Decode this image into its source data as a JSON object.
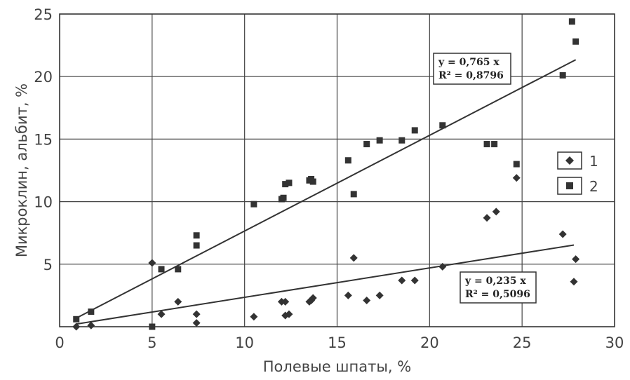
{
  "chart_data": {
    "type": "scatter",
    "title": "",
    "xlabel": "Полевые шпаты, %",
    "ylabel": "Микроклин, альбит, %",
    "xlim": [
      0,
      30
    ],
    "ylim": [
      0,
      25
    ],
    "x_ticks": [
      "0",
      "5",
      "10",
      "15",
      "20",
      "25",
      "30"
    ],
    "y_ticks": [
      "5",
      "10",
      "15",
      "20",
      "25"
    ],
    "grid": true,
    "legend_position": "right",
    "series": [
      {
        "name": "1",
        "marker": "diamond",
        "color": "#333333",
        "points": [
          [
            0.9,
            0.0
          ],
          [
            1.7,
            0.1
          ],
          [
            5.0,
            5.1
          ],
          [
            5.5,
            1.0
          ],
          [
            6.4,
            2.0
          ],
          [
            7.4,
            1.0
          ],
          [
            7.4,
            0.3
          ],
          [
            10.5,
            0.8
          ],
          [
            12.0,
            2.0
          ],
          [
            12.2,
            2.0
          ],
          [
            12.2,
            0.9
          ],
          [
            12.4,
            1.0
          ],
          [
            13.5,
            2.0
          ],
          [
            13.6,
            2.1
          ],
          [
            13.7,
            2.3
          ],
          [
            15.6,
            2.5
          ],
          [
            15.9,
            5.5
          ],
          [
            16.6,
            2.1
          ],
          [
            17.3,
            2.5
          ],
          [
            18.5,
            3.7
          ],
          [
            19.2,
            3.7
          ],
          [
            20.7,
            4.8
          ],
          [
            23.1,
            8.7
          ],
          [
            23.6,
            9.2
          ],
          [
            24.7,
            11.9
          ],
          [
            27.2,
            7.4
          ],
          [
            27.8,
            3.6
          ],
          [
            27.9,
            5.4
          ]
        ],
        "trendline": {
          "slope": 0.235,
          "x_range": [
            0.9,
            27.8
          ],
          "equation": "y = 0,235 x",
          "r2_label": "R² = 0,5096"
        }
      },
      {
        "name": "2",
        "marker": "square",
        "color": "#333333",
        "points": [
          [
            0.9,
            0.6
          ],
          [
            1.7,
            1.2
          ],
          [
            5.0,
            0.0
          ],
          [
            5.5,
            4.6
          ],
          [
            6.4,
            4.6
          ],
          [
            7.4,
            7.3
          ],
          [
            7.4,
            6.5
          ],
          [
            10.5,
            9.8
          ],
          [
            12.0,
            10.2
          ],
          [
            12.1,
            10.3
          ],
          [
            12.2,
            11.4
          ],
          [
            12.4,
            11.5
          ],
          [
            13.5,
            11.7
          ],
          [
            13.6,
            11.8
          ],
          [
            13.7,
            11.6
          ],
          [
            15.6,
            13.3
          ],
          [
            15.9,
            10.6
          ],
          [
            16.6,
            14.6
          ],
          [
            17.3,
            14.9
          ],
          [
            18.5,
            14.9
          ],
          [
            19.2,
            15.7
          ],
          [
            20.7,
            16.1
          ],
          [
            23.1,
            14.6
          ],
          [
            23.5,
            14.6
          ],
          [
            24.7,
            13.0
          ],
          [
            27.2,
            20.1
          ],
          [
            27.7,
            24.4
          ],
          [
            27.9,
            22.8
          ]
        ],
        "trendline": {
          "slope": 0.765,
          "x_range": [
            0.9,
            27.9
          ],
          "equation": "y = 0,765 x",
          "r2_label": "R² = 0,8796"
        }
      }
    ]
  }
}
